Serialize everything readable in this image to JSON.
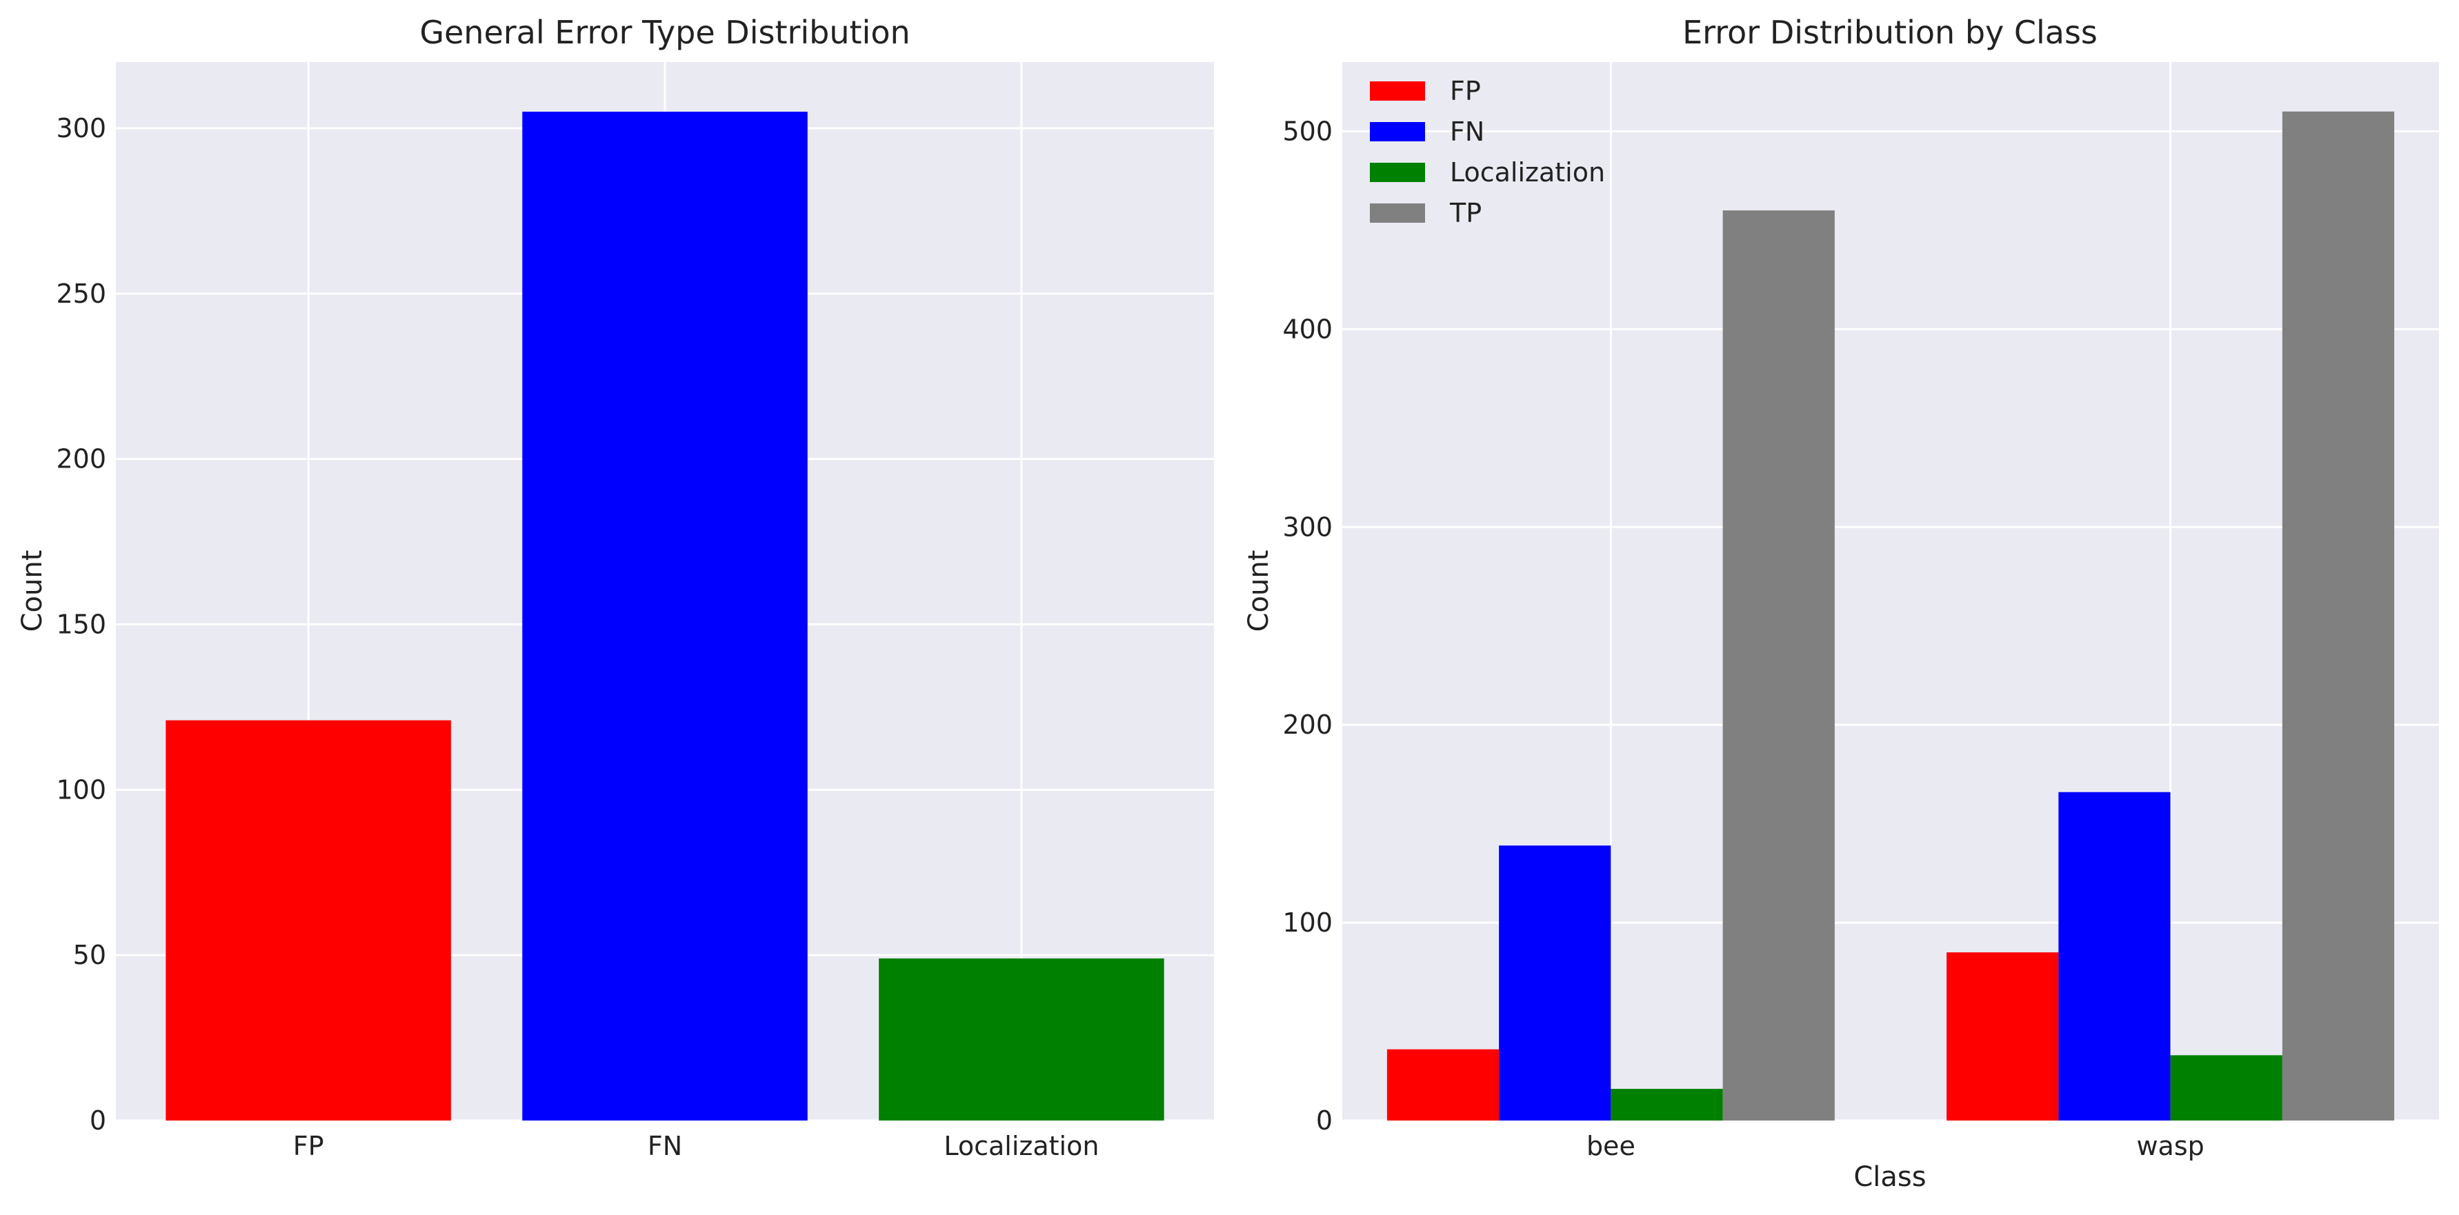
{
  "chart_data": [
    {
      "type": "bar",
      "title": "General Error Type Distribution",
      "xlabel": "",
      "ylabel": "Count",
      "categories": [
        "FP",
        "FN",
        "Localization"
      ],
      "values": [
        121,
        305,
        49
      ],
      "colors": [
        "#ff0000",
        "#0000ff",
        "#008000"
      ],
      "ylim": [
        0,
        320
      ],
      "yticks": [
        0,
        50,
        100,
        150,
        200,
        250,
        300
      ],
      "grid": true
    },
    {
      "type": "bar",
      "title": "Error Distribution by Class",
      "xlabel": "Class",
      "ylabel": "Count",
      "categories": [
        "bee",
        "wasp"
      ],
      "series": [
        {
          "name": "FP",
          "color": "#ff0000",
          "values": [
            36,
            85
          ]
        },
        {
          "name": "FN",
          "color": "#0000ff",
          "values": [
            139,
            166
          ]
        },
        {
          "name": "Localization",
          "color": "#008000",
          "values": [
            16,
            33
          ]
        },
        {
          "name": "TP",
          "color": "#808080",
          "values": [
            460,
            510
          ]
        }
      ],
      "ylim": [
        0,
        535
      ],
      "yticks": [
        0,
        100,
        200,
        300,
        400,
        500
      ],
      "legend": "top-left",
      "grid": true
    }
  ]
}
